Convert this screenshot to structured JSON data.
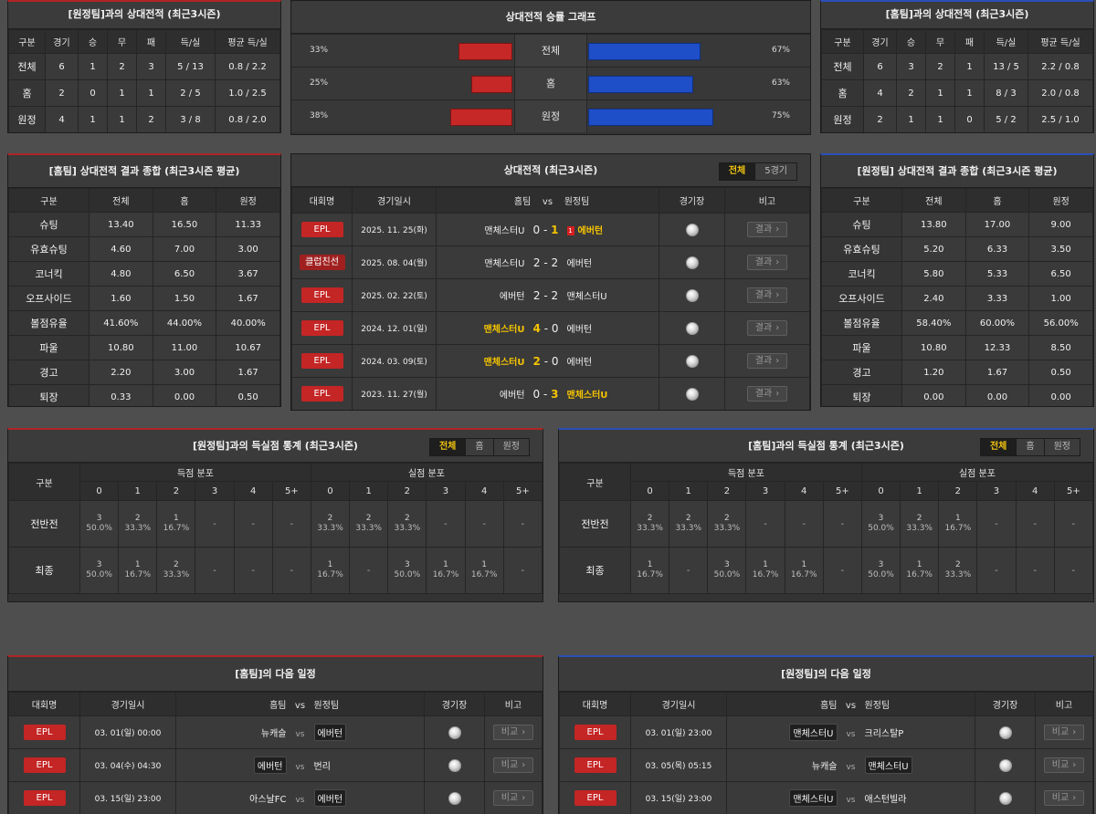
{
  "h2h_cols": [
    "구분",
    "경기",
    "승",
    "무",
    "패",
    "득/실",
    "평균 득/실"
  ],
  "h2h_away": {
    "title": "[원정팀]과의 상대전적 (최근3시즌)",
    "rows": [
      [
        "전체",
        "6",
        "1",
        "2",
        "3",
        "5 / 13",
        "0.8 / 2.2"
      ],
      [
        "홈",
        "2",
        "0",
        "1",
        "1",
        "2 / 5",
        "1.0 / 2.5"
      ],
      [
        "원정",
        "4",
        "1",
        "1",
        "2",
        "3 / 8",
        "0.8 / 2.0"
      ]
    ]
  },
  "h2h_home": {
    "title": "[홈팀]과의 상대전적 (최근3시즌)",
    "rows": [
      [
        "전체",
        "6",
        "3",
        "2",
        "1",
        "13 / 5",
        "2.2 / 0.8"
      ],
      [
        "홈",
        "4",
        "2",
        "1",
        "1",
        "8 / 3",
        "2.0 / 0.8"
      ],
      [
        "원정",
        "2",
        "1",
        "1",
        "0",
        "5 / 2",
        "2.5 / 1.0"
      ]
    ]
  },
  "graph": {
    "title": "상대전적 승률 그래프",
    "colors": {
      "left": "#c62828",
      "right": "#1e4fc8"
    },
    "rows": [
      {
        "label": "전체",
        "left_pct": "33%",
        "right_pct": "67%",
        "left": 33,
        "right": 67
      },
      {
        "label": "홈",
        "left_pct": "25%",
        "right_pct": "63%",
        "left": 25,
        "right": 63
      },
      {
        "label": "원정",
        "left_pct": "38%",
        "right_pct": "75%",
        "left": 38,
        "right": 75
      }
    ]
  },
  "res_cols": [
    "구분",
    "전체",
    "홈",
    "원정"
  ],
  "res_home": {
    "title": "[홈팀] 상대전적 결과 종합 (최근3시즌 평균)",
    "rows": [
      [
        "슈팅",
        "13.40",
        "16.50",
        "11.33"
      ],
      [
        "유효슈팅",
        "4.60",
        "7.00",
        "3.00"
      ],
      [
        "코너킥",
        "4.80",
        "6.50",
        "3.67"
      ],
      [
        "오프사이드",
        "1.60",
        "1.50",
        "1.67"
      ],
      [
        "볼점유율",
        "41.60%",
        "44.00%",
        "40.00%"
      ],
      [
        "파울",
        "10.80",
        "11.00",
        "10.67"
      ],
      [
        "경고",
        "2.20",
        "3.00",
        "1.67"
      ],
      [
        "퇴장",
        "0.33",
        "0.00",
        "0.50"
      ]
    ]
  },
  "res_away": {
    "title": "[원정팀] 상대전적 결과 종합 (최근3시즌 평균)",
    "rows": [
      [
        "슈팅",
        "13.80",
        "17.00",
        "9.00"
      ],
      [
        "유효슈팅",
        "5.20",
        "6.33",
        "3.50"
      ],
      [
        "코너킥",
        "5.80",
        "5.33",
        "6.50"
      ],
      [
        "오프사이드",
        "2.40",
        "3.33",
        "1.00"
      ],
      [
        "볼점유율",
        "58.40%",
        "60.00%",
        "56.00%"
      ],
      [
        "파울",
        "10.80",
        "12.33",
        "8.50"
      ],
      [
        "경고",
        "1.20",
        "1.67",
        "0.50"
      ],
      [
        "퇴장",
        "0.00",
        "0.00",
        "0.00"
      ]
    ]
  },
  "recent": {
    "title": "상대전적 (최근3시즌)",
    "tabs": [
      "전체",
      "5경기"
    ],
    "cols": {
      "league": "대회명",
      "date": "경기일시",
      "home": "홈팀",
      "vs": "vs",
      "away": "원정팀",
      "venue": "경기장",
      "note": "비고"
    },
    "btn": "결과",
    "red_card": "1",
    "rows": [
      {
        "league": "EPL",
        "date": "2025. 11. 25(화)",
        "home": "맨체스터U",
        "hs": "0",
        "as": "1",
        "away": "에버턴",
        "win": "away",
        "card": true
      },
      {
        "league": "클럽친선",
        "date": "2025. 08. 04(월)",
        "home": "맨체스터U",
        "hs": "2",
        "as": "2",
        "away": "에버턴",
        "win": ""
      },
      {
        "league": "EPL",
        "date": "2025. 02. 22(토)",
        "home": "에버턴",
        "hs": "2",
        "as": "2",
        "away": "맨체스터U",
        "win": ""
      },
      {
        "league": "EPL",
        "date": "2024. 12. 01(일)",
        "home": "맨체스터U",
        "hs": "4",
        "as": "0",
        "away": "에버턴",
        "win": "home"
      },
      {
        "league": "EPL",
        "date": "2024. 03. 09(토)",
        "home": "맨체스터U",
        "hs": "2",
        "as": "0",
        "away": "에버턴",
        "win": "home"
      },
      {
        "league": "EPL",
        "date": "2023. 11. 27(월)",
        "home": "에버턴",
        "hs": "0",
        "as": "3",
        "away": "맨체스터U",
        "win": "away"
      }
    ]
  },
  "goal_tabs": [
    "전체",
    "홈",
    "원정"
  ],
  "goal_hdr": {
    "gubun": "구분",
    "scored": "득점 분포",
    "conceded": "실점 분포",
    "bins": [
      "0",
      "1",
      "2",
      "3",
      "4",
      "5+"
    ],
    "rows": [
      "전반전",
      "최종"
    ],
    "dash": "-"
  },
  "goals_away": {
    "title": "[원정팀]과의 득실점 통계 (최근3시즌)",
    "rows": [
      [
        [
          "3",
          "50.0%"
        ],
        [
          "2",
          "33.3%"
        ],
        [
          "1",
          "16.7%"
        ],
        null,
        null,
        null,
        [
          "2",
          "33.3%"
        ],
        [
          "2",
          "33.3%"
        ],
        [
          "2",
          "33.3%"
        ],
        null,
        null,
        null
      ],
      [
        [
          "3",
          "50.0%"
        ],
        [
          "1",
          "16.7%"
        ],
        [
          "2",
          "33.3%"
        ],
        null,
        null,
        null,
        [
          "1",
          "16.7%"
        ],
        null,
        [
          "3",
          "50.0%"
        ],
        [
          "1",
          "16.7%"
        ],
        [
          "1",
          "16.7%"
        ],
        null
      ]
    ]
  },
  "goals_home": {
    "title": "[홈팀]과의 득실점 통계 (최근3시즌)",
    "rows": [
      [
        [
          "2",
          "33.3%"
        ],
        [
          "2",
          "33.3%"
        ],
        [
          "2",
          "33.3%"
        ],
        null,
        null,
        null,
        [
          "3",
          "50.0%"
        ],
        [
          "2",
          "33.3%"
        ],
        [
          "1",
          "16.7%"
        ],
        null,
        null,
        null
      ],
      [
        [
          "1",
          "16.7%"
        ],
        null,
        [
          "3",
          "50.0%"
        ],
        [
          "1",
          "16.7%"
        ],
        [
          "1",
          "16.7%"
        ],
        null,
        [
          "3",
          "50.0%"
        ],
        [
          "1",
          "16.7%"
        ],
        [
          "2",
          "33.3%"
        ],
        null,
        null,
        null
      ]
    ]
  },
  "next_cols": {
    "league": "대회명",
    "date": "경기일시",
    "home": "홈팀",
    "vs": "vs",
    "away": "원정팀",
    "venue": "경기장",
    "note": "비고"
  },
  "next_btn": "비교",
  "next_home": {
    "title": "[홈팀]의 다음 일정",
    "rows": [
      {
        "league": "EPL",
        "date": "03. 01(일) 00:00",
        "home": "뉴캐슬",
        "away": "에버턴",
        "hl": "away"
      },
      {
        "league": "EPL",
        "date": "03. 04(수) 04:30",
        "home": "에버턴",
        "away": "번리",
        "hl": "home"
      },
      {
        "league": "EPL",
        "date": "03. 15(일) 23:00",
        "home": "아스날FC",
        "away": "에버턴",
        "hl": "away"
      }
    ]
  },
  "next_away": {
    "title": "[원정팀]의 다음 일정",
    "rows": [
      {
        "league": "EPL",
        "date": "03. 01(일) 23:00",
        "home": "맨체스터U",
        "away": "크리스탈P",
        "hl": "home"
      },
      {
        "league": "EPL",
        "date": "03. 05(목) 05:15",
        "home": "뉴캐슬",
        "away": "맨체스터U",
        "hl": "away"
      },
      {
        "league": "EPL",
        "date": "03. 15(일) 23:00",
        "home": "맨체스터U",
        "away": "애스턴빌라",
        "hl": "home"
      }
    ]
  }
}
